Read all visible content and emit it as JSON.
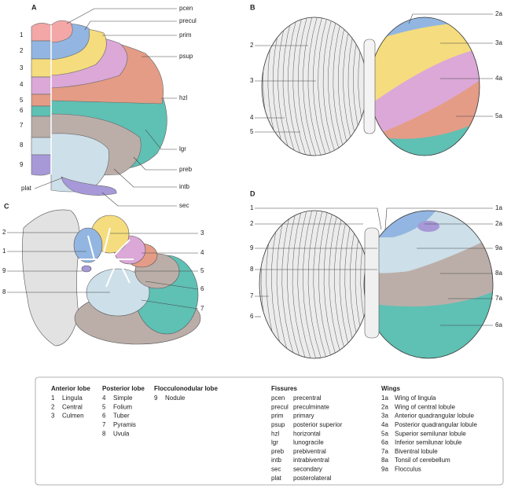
{
  "panels": [
    {
      "letter": "A",
      "labels": [
        "1",
        "2",
        "3",
        "4",
        "5",
        "6",
        "7",
        "8",
        "9",
        "pcen",
        "precul",
        "prim",
        "psup",
        "hzl",
        "lgr",
        "preb",
        "intb",
        "sec",
        "plat"
      ]
    },
    {
      "letter": "B",
      "labels": [
        "2",
        "3",
        "4",
        "5",
        "2a",
        "3a",
        "4a",
        "5a"
      ]
    },
    {
      "letter": "C",
      "labels": [
        "2",
        "1",
        "9",
        "8",
        "3",
        "4",
        "5",
        "6",
        "7"
      ]
    },
    {
      "letter": "D",
      "labels": [
        "1",
        "2",
        "9",
        "8",
        "7",
        "6",
        "1a",
        "2a",
        "9a",
        "8a",
        "7a",
        "6a"
      ]
    }
  ],
  "legend": {
    "groups": [
      {
        "title": "Anterior lobe",
        "items": [
          {
            "key": "1",
            "name": "Lingula"
          },
          {
            "key": "2",
            "name": "Central"
          },
          {
            "key": "3",
            "name": "Culmen"
          }
        ]
      },
      {
        "title": "Posterior lobe",
        "items": [
          {
            "key": "4",
            "name": "Simple"
          },
          {
            "key": "5",
            "name": "Folium"
          },
          {
            "key": "6",
            "name": "Tuber"
          },
          {
            "key": "7",
            "name": "Pyramis"
          },
          {
            "key": "8",
            "name": "Uvula"
          }
        ]
      },
      {
        "title": "Flocculonodular lobe",
        "items": [
          {
            "key": "9",
            "name": "Nodule"
          }
        ]
      },
      {
        "title": "Fissures",
        "items": [
          {
            "key": "pcen",
            "name": "precentral"
          },
          {
            "key": "precul",
            "name": "preculminate"
          },
          {
            "key": "prim",
            "name": "primary"
          },
          {
            "key": "psup",
            "name": "posterior superior"
          },
          {
            "key": "hzl",
            "name": "horizontal"
          },
          {
            "key": "lgr",
            "name": "lunogracile"
          },
          {
            "key": "preb",
            "name": "prebiventral"
          },
          {
            "key": "intb",
            "name": "intrabiventral"
          },
          {
            "key": "sec",
            "name": "secondary"
          },
          {
            "key": "plat",
            "name": "posterolateral"
          }
        ]
      },
      {
        "title": "Wings",
        "items": [
          {
            "key": "1a",
            "name": "Wing of lingula"
          },
          {
            "key": "2a",
            "name": "Wing of central lobule"
          },
          {
            "key": "3a",
            "name": "Anterior quadrangular lobule"
          },
          {
            "key": "4a",
            "name": "Posterior quadrangular lobule"
          },
          {
            "key": "5a",
            "name": "Superior semilunar lobule"
          },
          {
            "key": "6a",
            "name": "Inferior semilunar lobule"
          },
          {
            "key": "7a",
            "name": "Biventral lobule"
          },
          {
            "key": "8a",
            "name": "Tonsil of cerebellum"
          },
          {
            "key": "9a",
            "name": "Flocculus"
          }
        ]
      }
    ]
  }
}
